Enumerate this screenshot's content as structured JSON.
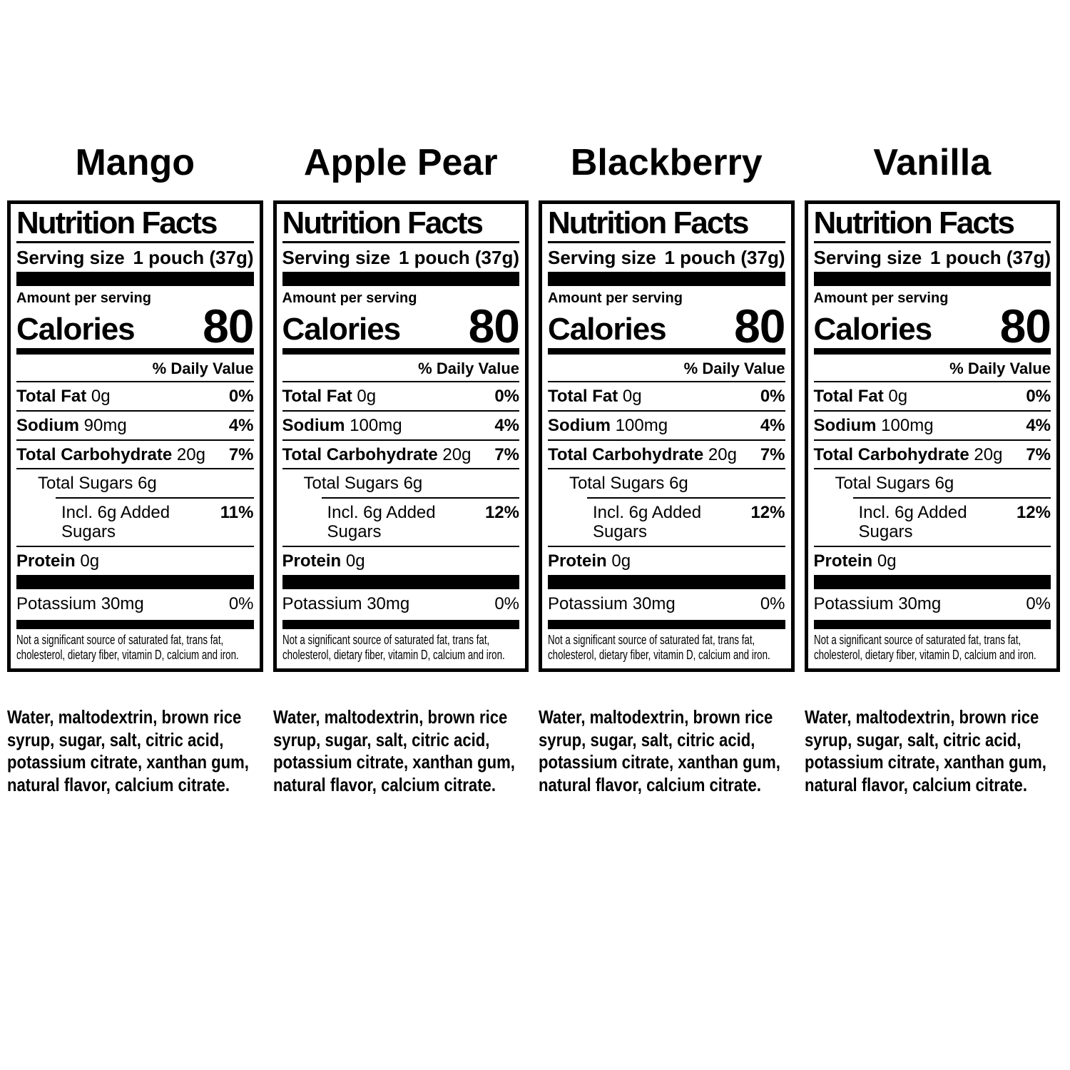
{
  "shared": {
    "nutrition_facts_title": "Nutrition Facts",
    "serving_size_label": "Serving size",
    "serving_size_value": "1 pouch (37g)",
    "amount_per_serving_label": "Amount per serving",
    "calories_label": "Calories",
    "daily_value_label": "% Daily Value",
    "footnote": "Not a significant source of saturated fat, trans fat, cholesterol, dietary fiber, vitamin D, calcium and iron.",
    "text_color": "#000000",
    "background_color": "#ffffff"
  },
  "flavors": [
    {
      "name": "Mango",
      "calories": "80",
      "rows": [
        {
          "name": "Total Fat",
          "bold": true,
          "amount": "0g",
          "dv": "0%",
          "indent": 0
        },
        {
          "name": "Sodium",
          "bold": true,
          "amount": "90mg",
          "dv": "4%",
          "indent": 0
        },
        {
          "name": "Total Carbohydrate",
          "bold": true,
          "amount": "20g",
          "dv": "7%",
          "indent": 0
        },
        {
          "name": "Total Sugars",
          "bold": false,
          "amount": "6g",
          "dv": "",
          "indent": 1
        },
        {
          "name": "Incl. 6g Added Sugars",
          "bold": false,
          "amount": "",
          "dv": "11%",
          "indent": 2
        },
        {
          "name": "Protein",
          "bold": true,
          "amount": "0g",
          "dv": "",
          "indent": 0
        }
      ],
      "potassium": {
        "name": "Potassium",
        "amount": "30mg",
        "dv": "0%"
      },
      "ingredients": "Water, maltodextrin, brown rice syrup, sugar, salt, citric acid, potassium citrate, xanthan gum, natural flavor, calcium citrate."
    },
    {
      "name": "Apple Pear",
      "calories": "80",
      "rows": [
        {
          "name": "Total Fat",
          "bold": true,
          "amount": "0g",
          "dv": "0%",
          "indent": 0
        },
        {
          "name": "Sodium",
          "bold": true,
          "amount": "100mg",
          "dv": "4%",
          "indent": 0
        },
        {
          "name": "Total Carbohydrate",
          "bold": true,
          "amount": "20g",
          "dv": "7%",
          "indent": 0
        },
        {
          "name": "Total Sugars",
          "bold": false,
          "amount": "6g",
          "dv": "",
          "indent": 1
        },
        {
          "name": "Incl. 6g Added Sugars",
          "bold": false,
          "amount": "",
          "dv": "12%",
          "indent": 2
        },
        {
          "name": "Protein",
          "bold": true,
          "amount": "0g",
          "dv": "",
          "indent": 0
        }
      ],
      "potassium": {
        "name": "Potassium",
        "amount": "30mg",
        "dv": "0%"
      },
      "ingredients": "Water, maltodextrin, brown rice syrup, sugar, salt, citric acid, potassium citrate, xanthan gum, natural flavor, calcium citrate."
    },
    {
      "name": "Blackberry",
      "calories": "80",
      "rows": [
        {
          "name": "Total Fat",
          "bold": true,
          "amount": "0g",
          "dv": "0%",
          "indent": 0
        },
        {
          "name": "Sodium",
          "bold": true,
          "amount": "100mg",
          "dv": "4%",
          "indent": 0
        },
        {
          "name": "Total Carbohydrate",
          "bold": true,
          "amount": "20g",
          "dv": "7%",
          "indent": 0
        },
        {
          "name": "Total Sugars",
          "bold": false,
          "amount": "6g",
          "dv": "",
          "indent": 1
        },
        {
          "name": "Incl. 6g Added Sugars",
          "bold": false,
          "amount": "",
          "dv": "12%",
          "indent": 2
        },
        {
          "name": "Protein",
          "bold": true,
          "amount": "0g",
          "dv": "",
          "indent": 0
        }
      ],
      "potassium": {
        "name": "Potassium",
        "amount": "30mg",
        "dv": "0%"
      },
      "ingredients": "Water, maltodextrin, brown rice syrup, sugar, salt, citric acid, potassium citrate, xanthan gum, natural flavor, calcium citrate."
    },
    {
      "name": "Vanilla",
      "calories": "80",
      "rows": [
        {
          "name": "Total Fat",
          "bold": true,
          "amount": "0g",
          "dv": "0%",
          "indent": 0
        },
        {
          "name": "Sodium",
          "bold": true,
          "amount": "100mg",
          "dv": "4%",
          "indent": 0
        },
        {
          "name": "Total Carbohydrate",
          "bold": true,
          "amount": "20g",
          "dv": "7%",
          "indent": 0
        },
        {
          "name": "Total Sugars",
          "bold": false,
          "amount": "6g",
          "dv": "",
          "indent": 1
        },
        {
          "name": "Incl. 6g Added Sugars",
          "bold": false,
          "amount": "",
          "dv": "12%",
          "indent": 2
        },
        {
          "name": "Protein",
          "bold": true,
          "amount": "0g",
          "dv": "",
          "indent": 0
        }
      ],
      "potassium": {
        "name": "Potassium",
        "amount": "30mg",
        "dv": "0%"
      },
      "ingredients": "Water, maltodextrin, brown rice syrup, sugar, salt, citric acid, potassium citrate, xanthan gum, natural flavor, calcium citrate."
    }
  ]
}
